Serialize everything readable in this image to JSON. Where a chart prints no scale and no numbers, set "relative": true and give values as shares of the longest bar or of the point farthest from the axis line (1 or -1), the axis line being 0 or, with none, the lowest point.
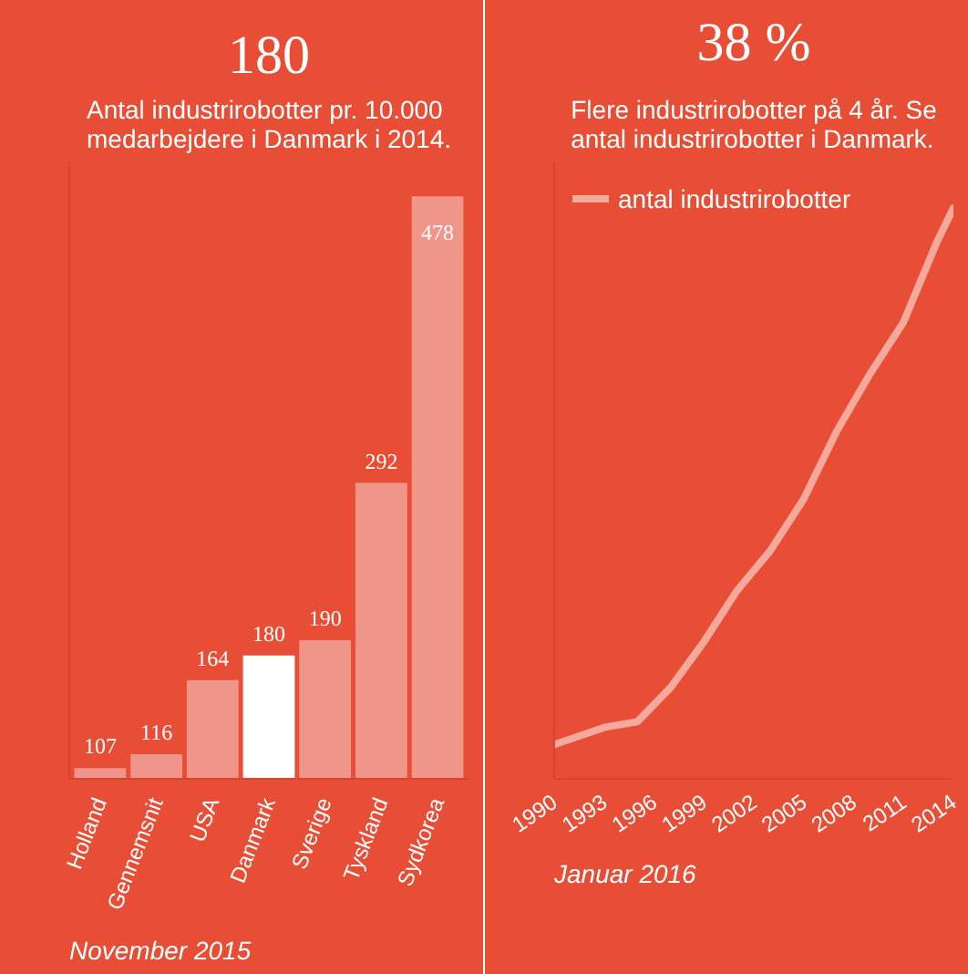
{
  "chart_data": [
    {
      "type": "bar",
      "title": "180",
      "subtitle": "Antal industrirobotter pr. 10.000\nmedarbejdere i Danmark i 2014.",
      "categories": [
        "Holland",
        "Gennemsnit",
        "USA",
        "Danmark",
        "Sverige",
        "Tyskland",
        "Sydkorea"
      ],
      "values": [
        107,
        116,
        164,
        180,
        190,
        292,
        478
      ],
      "colors": [
        "#f0958a",
        "#f0958a",
        "#f0958a",
        "#ffffff",
        "#f0958a",
        "#f0958a",
        "#f0958a"
      ],
      "ylim": [
        100,
        500
      ],
      "data_labels": true,
      "tick_labels": "x",
      "grid": false,
      "annotations": [
        "November 2015"
      ]
    },
    {
      "type": "line",
      "title": "38 %",
      "subtitle": "Flere industrirobotter på 4 år. Se\nantal industrirobotter i Danmark.",
      "x": [
        1990,
        1993,
        1995,
        1997,
        1999,
        2001,
        2003,
        2005,
        2007,
        2009,
        2011,
        2013,
        2014
      ],
      "series": [
        {
          "name": "antal industrirobotter",
          "color": "#f5a89c",
          "values": [
            0.06,
            0.09,
            0.1,
            0.16,
            0.24,
            0.33,
            0.4,
            0.49,
            0.61,
            0.71,
            0.8,
            0.94,
            1.0
          ]
        }
      ],
      "relative": true,
      "xlim": [
        1990,
        2014
      ],
      "xticks": [
        1990,
        1993,
        1996,
        1999,
        2002,
        2005,
        2008,
        2011,
        2014
      ],
      "legend": "top left",
      "grid": false,
      "annotations": [
        "Januar 2016"
      ]
    }
  ]
}
